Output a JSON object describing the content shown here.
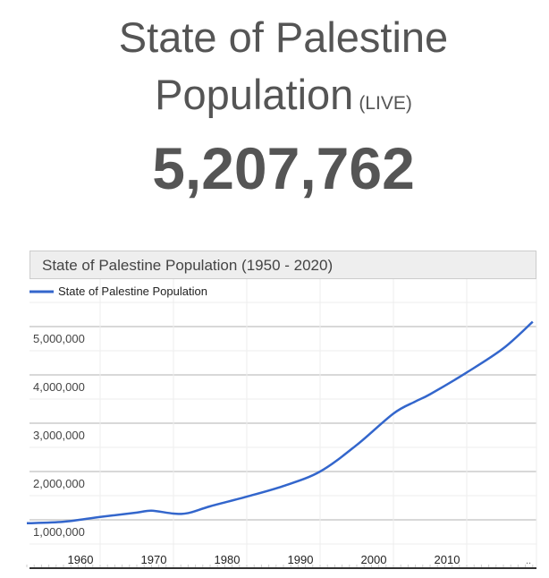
{
  "header": {
    "title_line1": "State of Palestine",
    "title_line2": "Population",
    "live_label": "(LIVE)",
    "counter": "5,207,762"
  },
  "chart_data": {
    "type": "line",
    "title": "State of Palestine Population (1950 - 2020)",
    "xlabel": "",
    "ylabel": "",
    "legend": {
      "label": "State of Palestine Population",
      "position": "top-left"
    },
    "series": [
      {
        "name": "State of Palestine Population",
        "color": "#3366cc",
        "x": [
          1950,
          1955,
          1960,
          1965,
          1967,
          1970,
          1972,
          1975,
          1980,
          1985,
          1990,
          1995,
          2000,
          2003,
          2005,
          2010,
          2015,
          2019
        ],
        "y": [
          930000,
          960000,
          1060000,
          1150000,
          1190000,
          1130000,
          1140000,
          1280000,
          1480000,
          1700000,
          2000000,
          2550000,
          3200000,
          3450000,
          3600000,
          4050000,
          4550000,
          5100000
        ]
      }
    ],
    "xlim": [
      1950,
      2019
    ],
    "ylim": [
      600000,
      5900000
    ],
    "yticks": [
      1000000,
      2000000,
      3000000,
      4000000,
      5000000
    ],
    "ytick_labels": [
      "1,000,000",
      "2,000,000",
      "3,000,000",
      "4,000,000",
      "5,000,000"
    ],
    "xticks": [
      1960,
      1970,
      1980,
      1990,
      2000,
      2010
    ],
    "xtick_labels": [
      "1960",
      "1970",
      "1980",
      "1990",
      "2000",
      "2010"
    ],
    "overflow_label": "..",
    "grid": true
  }
}
